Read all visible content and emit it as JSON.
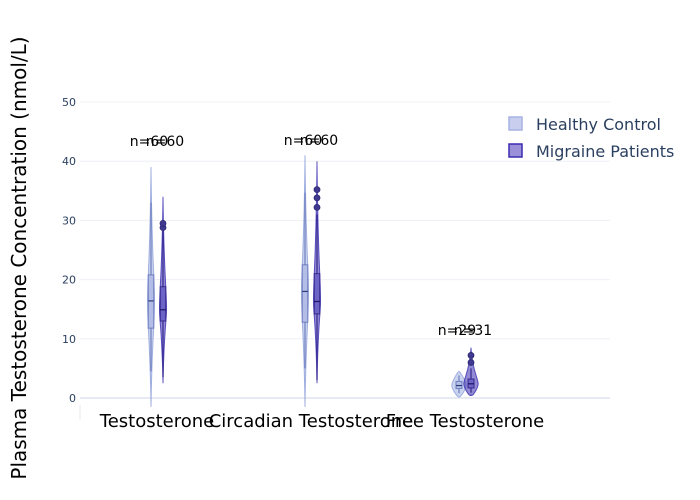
{
  "chart_data": {
    "type": "violin",
    "title": "",
    "xlabel": "",
    "ylabel": "Plasma Testosterone Concentration (nmol/L)",
    "ylim": [
      -1,
      50
    ],
    "yticks": [
      0,
      10,
      20,
      30,
      40,
      50
    ],
    "grid": true,
    "legend_placement": "top-right",
    "categories": [
      "Testosterone",
      "Circadian Testosterone",
      "Free Testosterone"
    ],
    "series": [
      {
        "name": "Healthy Control",
        "color": "#8c9fd9",
        "line_color": "#6e7fc0",
        "n_labels": [
          "n=60",
          "n=60",
          "n=29"
        ],
        "stats": [
          {
            "min": -1.5,
            "q1": 11.8,
            "median": 16.4,
            "q3": 20.8,
            "max": 39.0,
            "whisker_lo": 4.5,
            "whisker_hi": 33.0,
            "outliers": []
          },
          {
            "min": -1.5,
            "q1": 12.8,
            "median": 18.0,
            "q3": 22.5,
            "max": 41.0,
            "whisker_lo": 5.0,
            "whisker_hi": 34.7,
            "outliers": []
          },
          {
            "min": 0.2,
            "q1": 1.6,
            "median": 2.1,
            "q3": 2.8,
            "max": 4.5,
            "whisker_lo": 0.8,
            "whisker_hi": 3.8,
            "outliers": []
          }
        ]
      },
      {
        "name": "Migraine Patients",
        "color": "#3a2db0",
        "line_color": "#35298f",
        "n_labels": [
          "n=60",
          "n=60",
          "n=31"
        ],
        "stats": [
          {
            "min": 2.5,
            "q1": 13.0,
            "median": 14.9,
            "q3": 18.8,
            "max": 34.0,
            "whisker_lo": 3.5,
            "whisker_hi": 28.8,
            "outliers": [
              28.8,
              29.5
            ]
          },
          {
            "min": 2.5,
            "q1": 14.2,
            "median": 16.3,
            "q3": 21.0,
            "max": 40.0,
            "whisker_lo": 3.0,
            "whisker_hi": 31.0,
            "outliers": [
              32.2,
              33.8,
              35.2
            ]
          },
          {
            "min": 0.5,
            "q1": 1.7,
            "median": 2.4,
            "q3": 3.2,
            "max": 8.5,
            "whisker_lo": 0.9,
            "whisker_hi": 5.0,
            "outliers": [
              6.0,
              7.2
            ]
          }
        ]
      }
    ]
  },
  "legend": {
    "items": [
      {
        "label": "Healthy Control"
      },
      {
        "label": "Migraine Patients"
      }
    ]
  }
}
